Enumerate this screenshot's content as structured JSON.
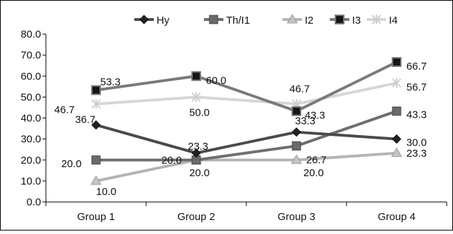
{
  "chart_data": {
    "type": "line",
    "title": "",
    "xlabel": "",
    "ylabel": "",
    "categories": [
      "Group 1",
      "Group 2",
      "Group 3",
      "Group 4"
    ],
    "ylim": [
      0,
      80
    ],
    "yticks": [
      "0.0",
      "10.0",
      "20.0",
      "30.0",
      "40.0",
      "50.0",
      "60.0",
      "70.0",
      "80.0"
    ],
    "grid": false,
    "legend_position": "top",
    "series": [
      {
        "name": "Hy",
        "values": [
          36.7,
          23.3,
          33.3,
          30.0
        ],
        "labels": [
          "36.7",
          "23.3",
          "33.3",
          "30.0"
        ],
        "color": "#4a4a4a",
        "marker": "diamond"
      },
      {
        "name": "Th/I1",
        "values": [
          20.0,
          20.0,
          26.7,
          43.3
        ],
        "labels": [
          "20.0",
          "20.0",
          "26.7",
          "43.3"
        ],
        "color": "#6e6e6e",
        "marker": "square"
      },
      {
        "name": "I2",
        "values": [
          10.0,
          20.0,
          20.0,
          23.3
        ],
        "labels": [
          "10.0",
          "20.0",
          "20.0",
          "23.3"
        ],
        "color": "#b4b4b4",
        "marker": "triangle"
      },
      {
        "name": "I3",
        "values": [
          53.3,
          60.0,
          43.3,
          66.7
        ],
        "labels": [
          "53.3",
          "60.0",
          "43.3",
          "66.7"
        ],
        "color": "#7a7a7a",
        "marker": "square-dark"
      },
      {
        "name": "I4",
        "values": [
          46.7,
          50.0,
          46.7,
          56.7
        ],
        "labels": [
          "46.7",
          "50.0",
          "46.7",
          "56.7"
        ],
        "color": "#d6d6d6",
        "marker": "star"
      }
    ]
  }
}
